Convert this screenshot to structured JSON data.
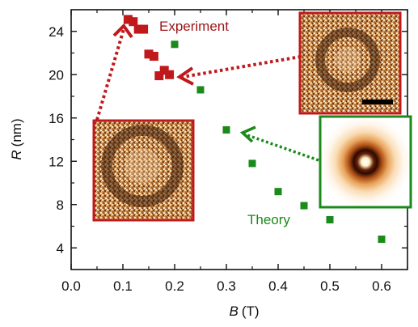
{
  "chart_data": {
    "type": "scatter",
    "xlabel_var": "B",
    "xlabel_unit": "(T)",
    "ylabel_var": "R",
    "ylabel_unit": "(nm)",
    "xlim": [
      0.0,
      0.65
    ],
    "ylim": [
      2,
      26
    ],
    "x_ticks": [
      0.0,
      0.1,
      0.2,
      0.3,
      0.4,
      0.5,
      0.6
    ],
    "x_tick_labels": [
      "0.0",
      "0.1",
      "0.2",
      "0.3",
      "0.4",
      "0.5",
      "0.6"
    ],
    "y_ticks": [
      4,
      8,
      12,
      16,
      20,
      24
    ],
    "y_tick_labels": [
      "4",
      "8",
      "12",
      "16",
      "20",
      "24"
    ],
    "grid": false,
    "series": [
      {
        "name": "Experiment",
        "color": "#c0191c",
        "marker": "square",
        "points": [
          {
            "x": 0.11,
            "y": 25.1
          },
          {
            "x": 0.12,
            "y": 24.9
          },
          {
            "x": 0.13,
            "y": 24.2
          },
          {
            "x": 0.14,
            "y": 24.2
          },
          {
            "x": 0.15,
            "y": 21.9
          },
          {
            "x": 0.16,
            "y": 21.7
          },
          {
            "x": 0.17,
            "y": 19.9
          },
          {
            "x": 0.18,
            "y": 20.4
          },
          {
            "x": 0.19,
            "y": 20.0
          }
        ]
      },
      {
        "name": "Theory",
        "color": "#1a8a1a",
        "marker": "square",
        "points": [
          {
            "x": 0.2,
            "y": 22.8
          },
          {
            "x": 0.25,
            "y": 18.6
          },
          {
            "x": 0.3,
            "y": 14.9
          },
          {
            "x": 0.35,
            "y": 11.8
          },
          {
            "x": 0.4,
            "y": 9.2
          },
          {
            "x": 0.45,
            "y": 7.9
          },
          {
            "x": 0.5,
            "y": 6.6
          },
          {
            "x": 0.6,
            "y": 4.8
          }
        ]
      }
    ],
    "annotations": [
      {
        "text": "Experiment",
        "color": "#a0151a"
      },
      {
        "text": "Theory",
        "color": "#1a8a1a"
      }
    ]
  }
}
